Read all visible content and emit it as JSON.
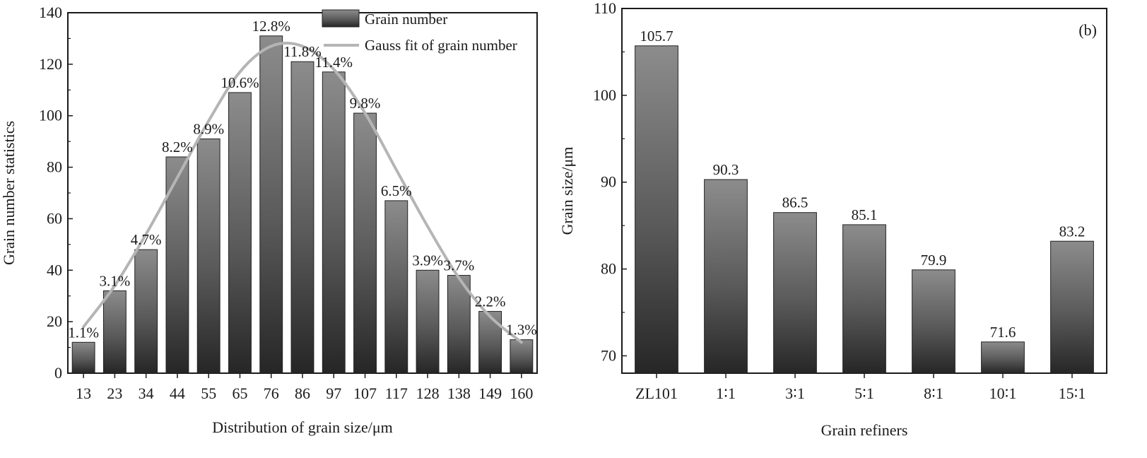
{
  "chart_data": [
    {
      "type": "bar",
      "panel": "a",
      "xlabel": "Distribution of grain size/μm",
      "ylabel": "Grain number statistics",
      "ylim": [
        0,
        140
      ],
      "yticks": [
        0,
        20,
        40,
        60,
        80,
        100,
        120,
        140
      ],
      "categories": [
        "13",
        "23",
        "34",
        "44",
        "55",
        "65",
        "76",
        "86",
        "97",
        "107",
        "117",
        "128",
        "138",
        "149",
        "160"
      ],
      "series": [
        {
          "name": "Grain number",
          "values": [
            12,
            32,
            48,
            84,
            91,
            109,
            131,
            121,
            117,
            101,
            67,
            40,
            38,
            24,
            13
          ],
          "labels": [
            "1.1%",
            "3.1%",
            "4.7%",
            "8.2%",
            "8.9%",
            "10.6%",
            "12.8%",
            "11.8%",
            "11.4%",
            "9.8%",
            "6.5%",
            "3.9%",
            "3.7%",
            "2.2%",
            "1.3%"
          ]
        },
        {
          "name": "Gauss fit of grain number",
          "type": "line",
          "values": [
            18,
            34,
            54,
            76,
            98,
            117,
            127,
            127,
            118,
            101,
            79,
            57,
            37,
            22,
            12
          ]
        }
      ],
      "legend_position": "top-right",
      "colors": {
        "bar_top": "#8c8c8c",
        "bar_bottom": "#262626",
        "fit_line": "#b5b5b5"
      }
    },
    {
      "type": "bar",
      "panel": "b",
      "panel_label": "(b)",
      "xlabel": "Grain refiners",
      "ylabel": "Grain size/μm",
      "ylim": [
        68,
        110
      ],
      "yticks": [
        70,
        80,
        90,
        100,
        110
      ],
      "categories": [
        "ZL101",
        "1∶1",
        "3∶1",
        "5∶1",
        "8∶1",
        "10∶1",
        "15∶1"
      ],
      "values": [
        105.7,
        90.3,
        86.5,
        85.1,
        79.9,
        71.6,
        83.2
      ],
      "labels": [
        "105.7",
        "90.3",
        "86.5",
        "85.1",
        "79.9",
        "71.6",
        "83.2"
      ],
      "colors": {
        "bar_top": "#8c8c8c",
        "bar_bottom": "#262626"
      }
    }
  ]
}
